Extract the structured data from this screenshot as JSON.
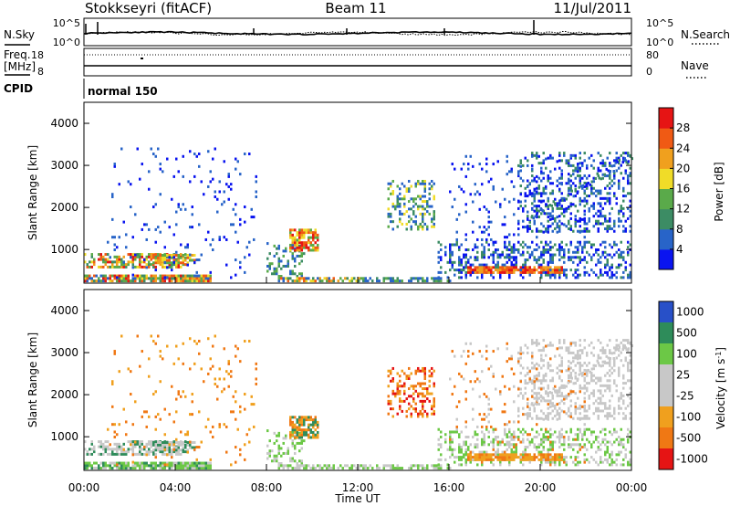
{
  "header": {
    "station": "Stokkseyri (fitACF)",
    "beam": "Beam 11",
    "date": "11/Jul/2011"
  },
  "noise_panel": {
    "left_label": "N.Sky",
    "right_label": "N.Search",
    "left_ticks": [
      "10^5",
      "10^0"
    ],
    "right_ticks": [
      "10^5",
      "10^0"
    ]
  },
  "freq_panel": {
    "left_label_1": "Freq.",
    "left_label_2": "[MHz]",
    "right_label": "Nave",
    "left_ticks": [
      "18",
      "8"
    ],
    "right_ticks": [
      "80",
      "0"
    ]
  },
  "cpid": {
    "label": "CPID",
    "value": "normal 150"
  },
  "colors": {
    "power_scale": [
      "#0a14f0",
      "#2864c8",
      "#3c8c64",
      "#5aaa4a",
      "#f0dc28",
      "#f0a01e",
      "#f05a14",
      "#e61414"
    ],
    "velocity_scale": [
      "#2850c8",
      "#2e8c5a",
      "#6cc846",
      "#c8c8c8",
      "#c8c8c8",
      "#f0a01e",
      "#f07814",
      "#e61414"
    ]
  },
  "chart_data": [
    {
      "type": "heatmap",
      "panel": "power",
      "ylabel": "Slant Range [km]",
      "yticks": [
        "4000",
        "3000",
        "2000",
        "1000"
      ],
      "ylim": [
        200,
        4500
      ],
      "xlim": [
        0,
        24
      ],
      "colorbar": {
        "label": "Power [dB]",
        "ticks": [
          "28",
          "24",
          "20",
          "16",
          "12",
          "8",
          "4"
        ],
        "range": [
          0,
          32
        ]
      }
    },
    {
      "type": "heatmap",
      "panel": "velocity",
      "ylabel": "Slant Range [km]",
      "yticks": [
        "4000",
        "3000",
        "2000",
        "1000"
      ],
      "ylim": [
        200,
        4500
      ],
      "xlim": [
        0,
        24
      ],
      "xticks": [
        "00:00",
        "04:00",
        "08:00",
        "12:00",
        "16:00",
        "20:00",
        "00:00"
      ],
      "xlabel": "Time UT",
      "colorbar": {
        "label": "Velocity [m s",
        "label_sup": "-1",
        "label_end": "]",
        "ticks": [
          "1000",
          "500",
          "100",
          "25",
          "-25",
          "-100",
          "-500",
          "-1000"
        ]
      }
    }
  ]
}
